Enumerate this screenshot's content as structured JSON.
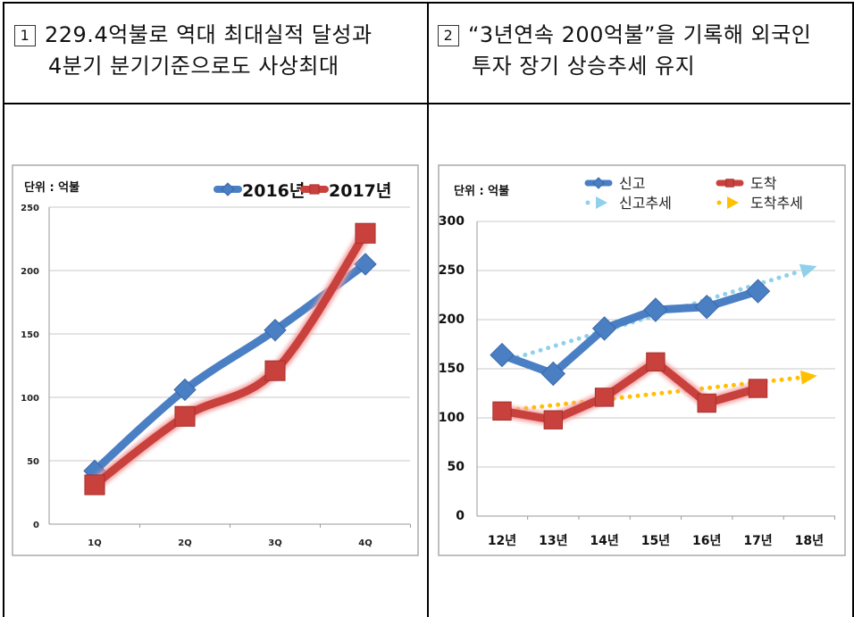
{
  "header": {
    "left": {
      "number": "1",
      "line1": "229.4억불로 역대 최대실적 달성과",
      "line2": "4분기 분기기준으로도 사상최대"
    },
    "right": {
      "number": "2",
      "line1": "“3년연속 200억불”을 기록해 외국인",
      "line2": "투자 장기 상승추세 유지"
    }
  },
  "chart_data": [
    {
      "type": "line",
      "unit_label": "단위 : 억불",
      "categories": [
        "1Q",
        "2Q",
        "3Q",
        "4Q"
      ],
      "ylim": [
        0,
        250
      ],
      "yticks": [
        "0",
        "50",
        "100",
        "150",
        "200",
        "250"
      ],
      "grid": true,
      "legend_position": "top-right",
      "series": [
        {
          "name": "2016년",
          "values": [
            42,
            106,
            153,
            205
          ],
          "color": "#4a7fc4",
          "marker": "diamond"
        },
        {
          "name": "2017년",
          "values": [
            31,
            85,
            121,
            229.4
          ],
          "color": "#c8413d",
          "marker": "square"
        }
      ]
    },
    {
      "type": "line",
      "unit_label": "단위 : 억불",
      "categories": [
        "12년",
        "13년",
        "14년",
        "15년",
        "16년",
        "17년",
        "18년"
      ],
      "ylim": [
        0,
        300
      ],
      "yticks": [
        "0",
        "50",
        "100",
        "150",
        "200",
        "250",
        "300"
      ],
      "grid": true,
      "legend_position": "top",
      "series": [
        {
          "name": "신고",
          "values": [
            164,
            145,
            191,
            210,
            213,
            229,
            null
          ],
          "color": "#4a7fc4",
          "marker": "diamond"
        },
        {
          "name": "도착",
          "values": [
            107,
            98,
            121,
            157,
            115,
            130,
            null
          ],
          "color": "#c8413d",
          "marker": "square"
        },
        {
          "name": "신고추세",
          "values": [
            157,
            173,
            189,
            204,
            220,
            236,
            252
          ],
          "color": "#8fd0ea",
          "style": "dotted-arrow"
        },
        {
          "name": "도착추세",
          "values": [
            107,
            113,
            118,
            124,
            130,
            136,
            142
          ],
          "color": "#ffc000",
          "style": "dotted-arrow"
        }
      ]
    }
  ]
}
